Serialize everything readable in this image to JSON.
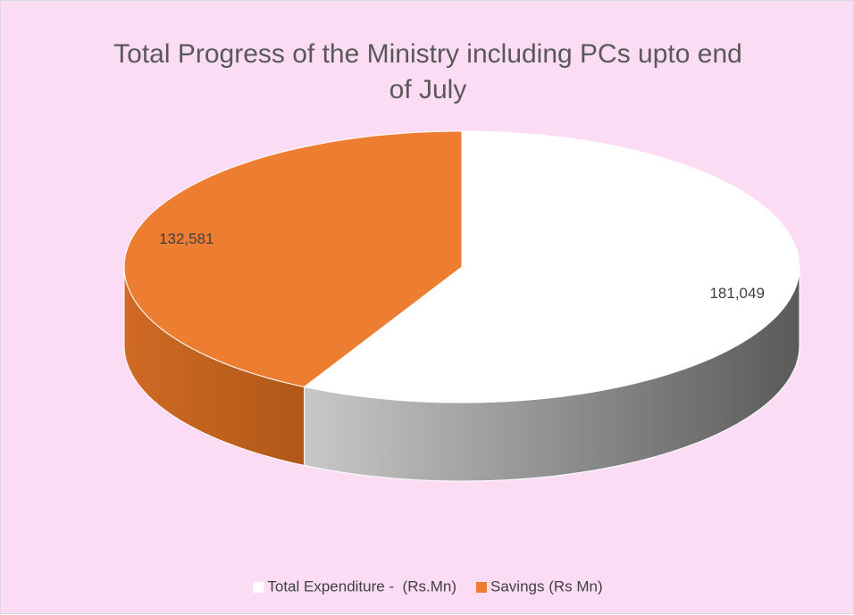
{
  "chart_data": {
    "type": "pie",
    "title": "Total Progress of the Ministry including PCs upto end of July",
    "categories": [
      "Total Expenditure -  (Rs.Mn)",
      "Savings (Rs Mn)"
    ],
    "values": [
      181049,
      132581
    ],
    "value_labels": [
      "181,049",
      "132,581"
    ],
    "colors": [
      "#ffffff",
      "#ed7d31"
    ],
    "legend": "bottom"
  }
}
